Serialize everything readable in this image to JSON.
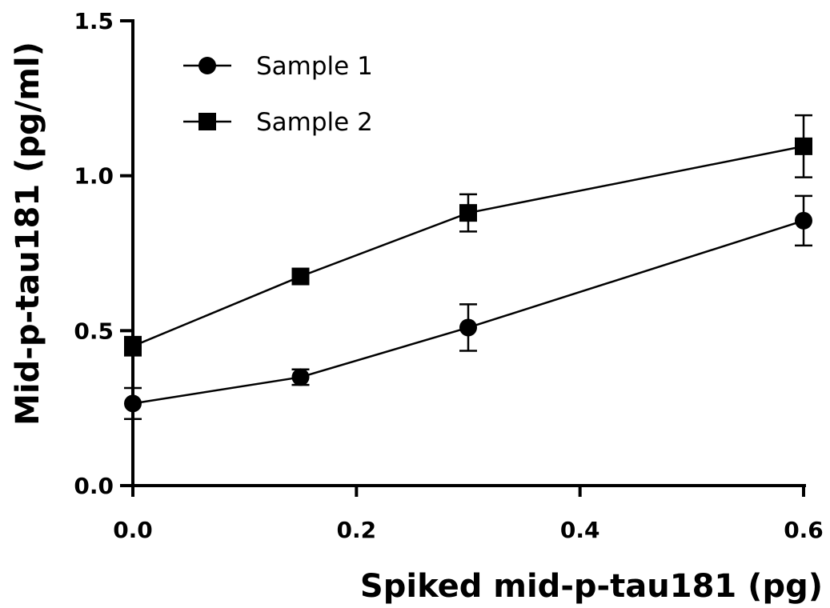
{
  "chart_data": {
    "type": "line",
    "xlabel": "Spiked mid-p-tau181 (pg)",
    "ylabel": "Mid-p-tau181 (pg/ml)",
    "xlim": [
      0,
      0.6
    ],
    "ylim": [
      0,
      1.5
    ],
    "x_ticks": [
      "0.0",
      "0.2",
      "0.4",
      "0.6"
    ],
    "y_ticks": [
      "0.0",
      "0.5",
      "1.0",
      "1.5"
    ],
    "x_tick_values": [
      0,
      0.2,
      0.4,
      0.6
    ],
    "y_tick_values": [
      0,
      0.5,
      1.0,
      1.5
    ],
    "grid": false,
    "legend_position": "top-left",
    "series": [
      {
        "name": "Sample 1",
        "marker": "circle",
        "color": "#000000",
        "x": [
          0,
          0.15,
          0.3,
          0.6
        ],
        "y": [
          0.265,
          0.35,
          0.51,
          0.855
        ],
        "error": [
          0.05,
          0.025,
          0.075,
          0.08
        ]
      },
      {
        "name": "Sample 2",
        "marker": "square",
        "color": "#000000",
        "x": [
          0,
          0.15,
          0.3,
          0.6
        ],
        "y": [
          0.45,
          0.675,
          0.88,
          1.095
        ],
        "error": [
          0.03,
          0.015,
          0.06,
          0.1
        ]
      }
    ]
  }
}
